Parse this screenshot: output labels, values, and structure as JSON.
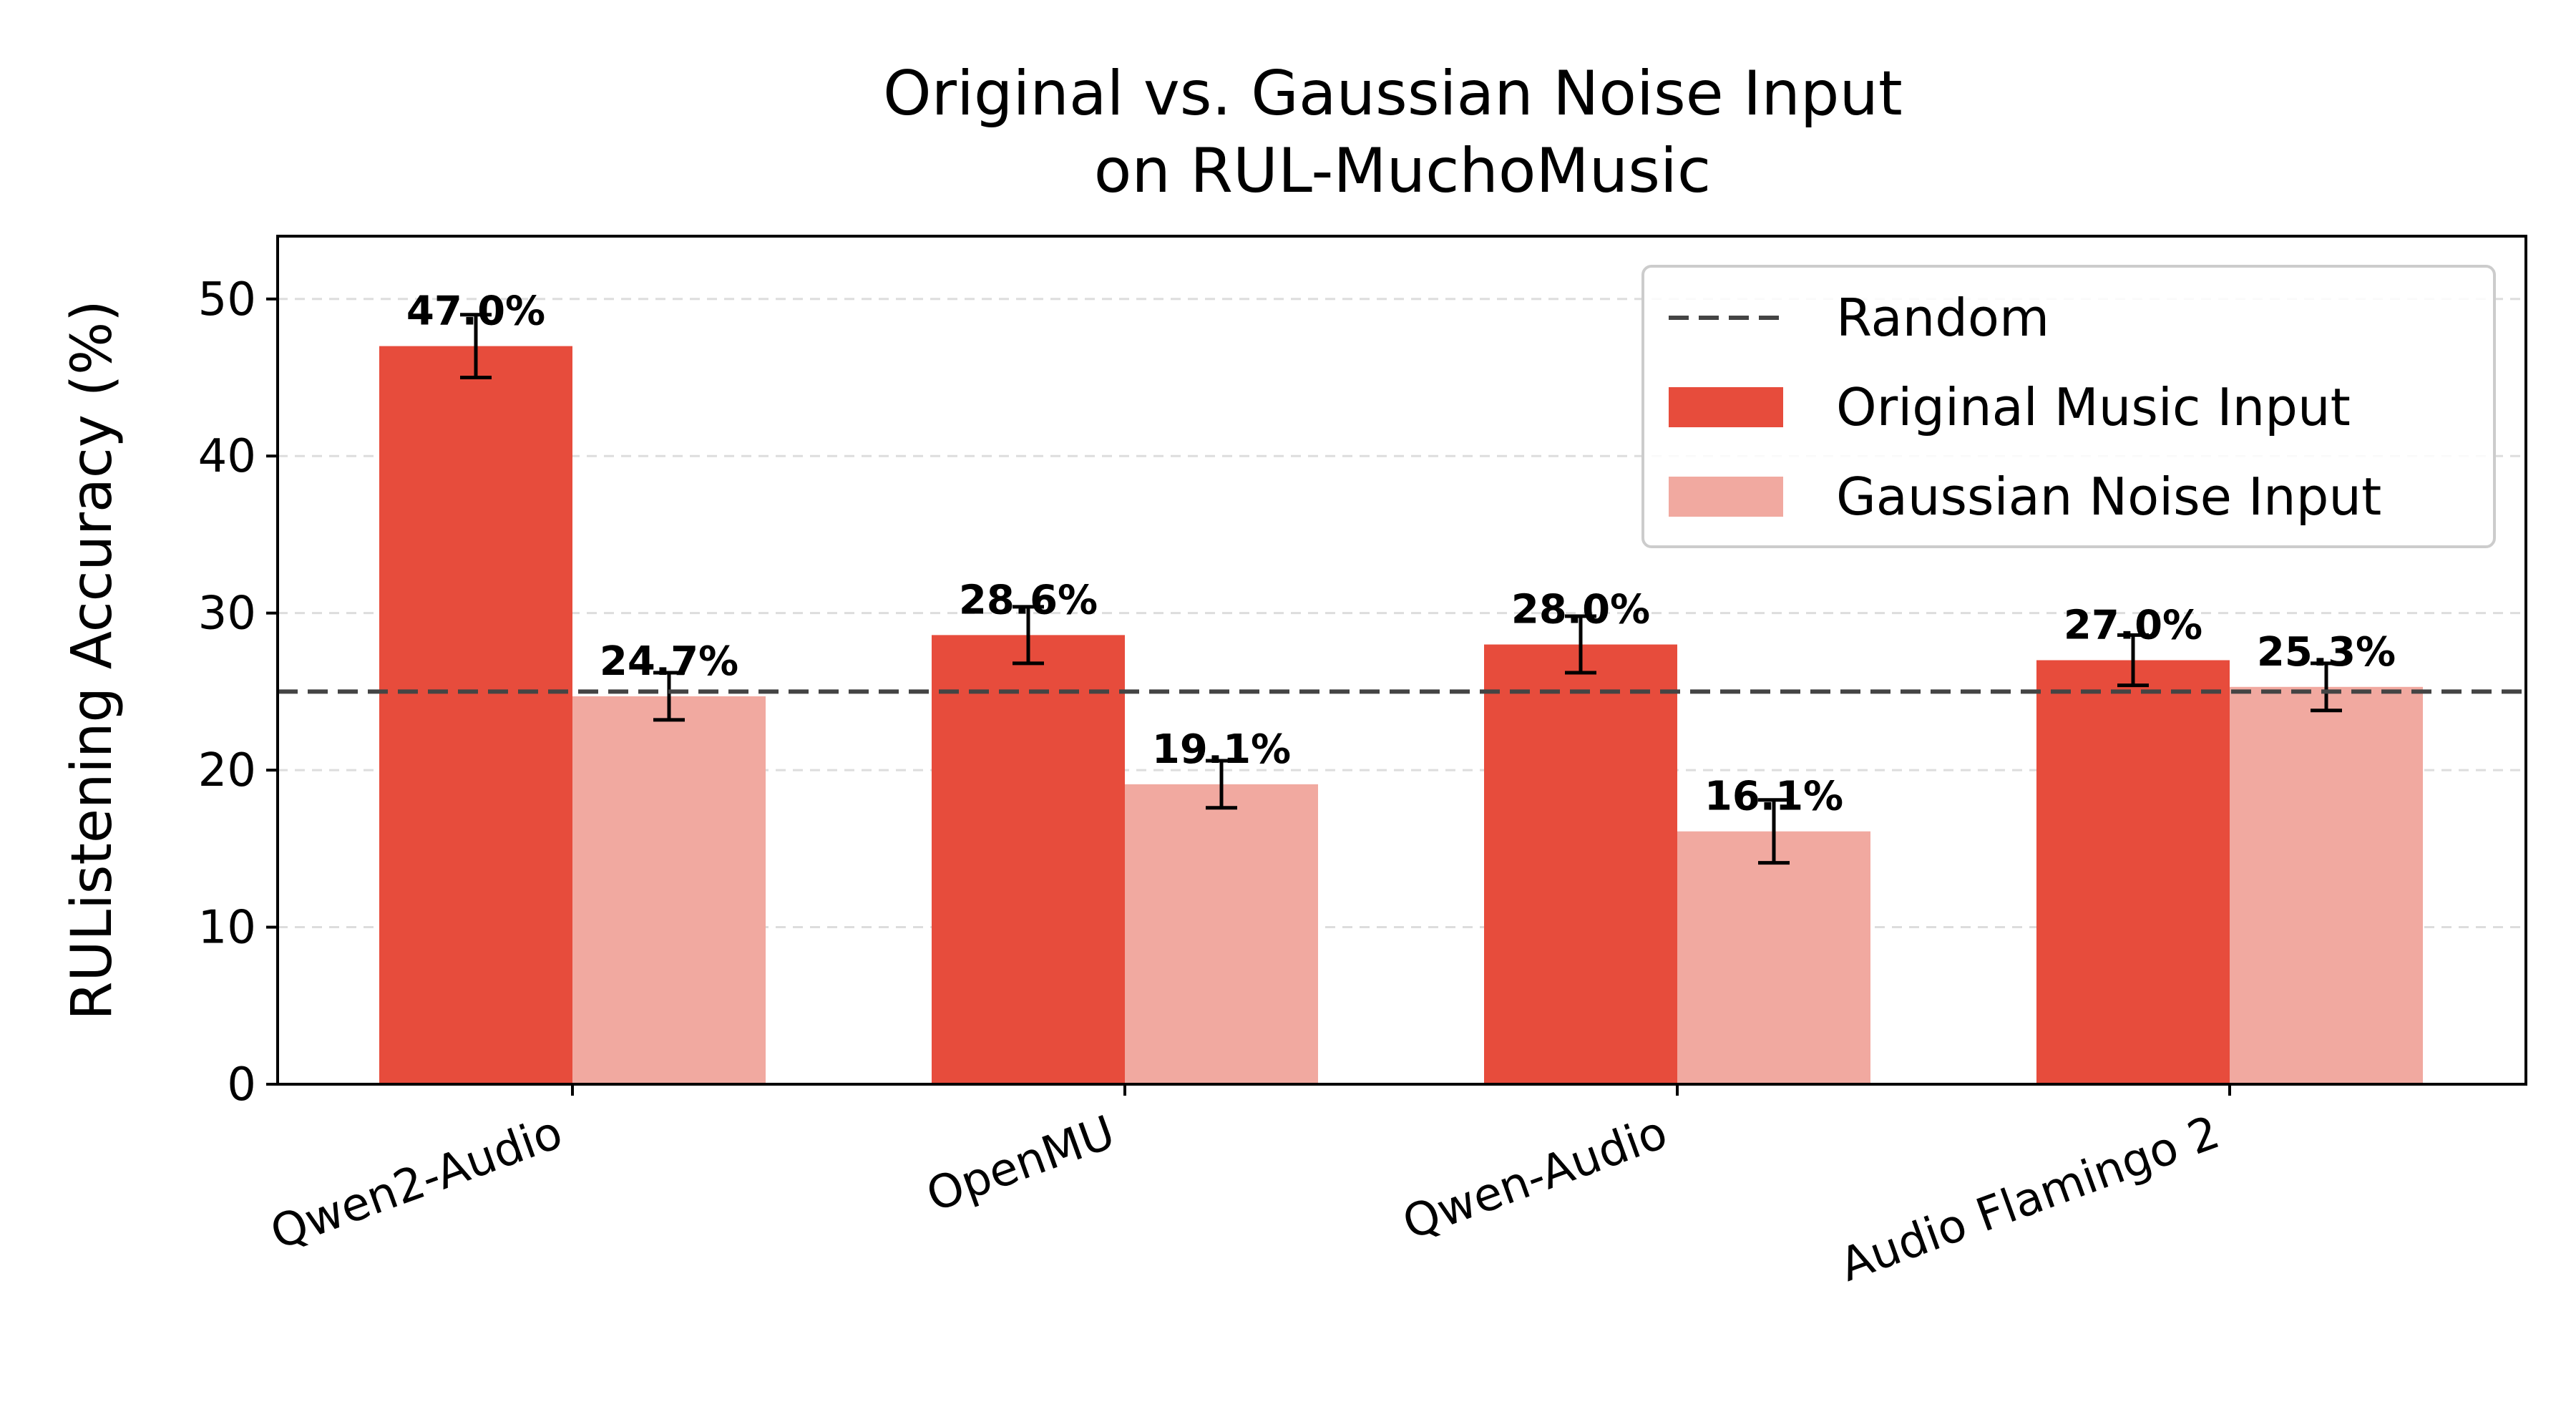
{
  "chart_data": {
    "type": "bar",
    "title": "Original vs. Gaussian Noise Input\non RUL-MuchoMusic",
    "xlabel": "",
    "ylabel": "RUListening Accuracy (%)",
    "categories": [
      "Qwen2-Audio",
      "OpenMU",
      "Qwen-Audio",
      "Audio Flamingo 2"
    ],
    "series": [
      {
        "name": "Original Music Input",
        "color": "#e74c3c",
        "values": [
          47.0,
          28.6,
          28.0,
          27.0
        ],
        "errors": [
          2.0,
          1.8,
          1.8,
          1.6
        ],
        "labels": [
          "47.0%",
          "28.6%",
          "28.0%",
          "27.0%"
        ]
      },
      {
        "name": "Gaussian Noise Input",
        "color": "#f1a9a0",
        "values": [
          24.7,
          19.1,
          16.1,
          25.3
        ],
        "errors": [
          1.5,
          1.5,
          2.0,
          1.5
        ],
        "labels": [
          "24.7%",
          "19.1%",
          "16.1%",
          "25.3%"
        ]
      }
    ],
    "reference_line": {
      "name": "Random",
      "value": 25,
      "style": "dashed",
      "color": "#444444"
    },
    "ylim": [
      0,
      54
    ],
    "yticks": [
      0,
      10,
      20,
      30,
      40,
      50
    ],
    "grid": "y-dashed",
    "legend_position": "top-right"
  }
}
